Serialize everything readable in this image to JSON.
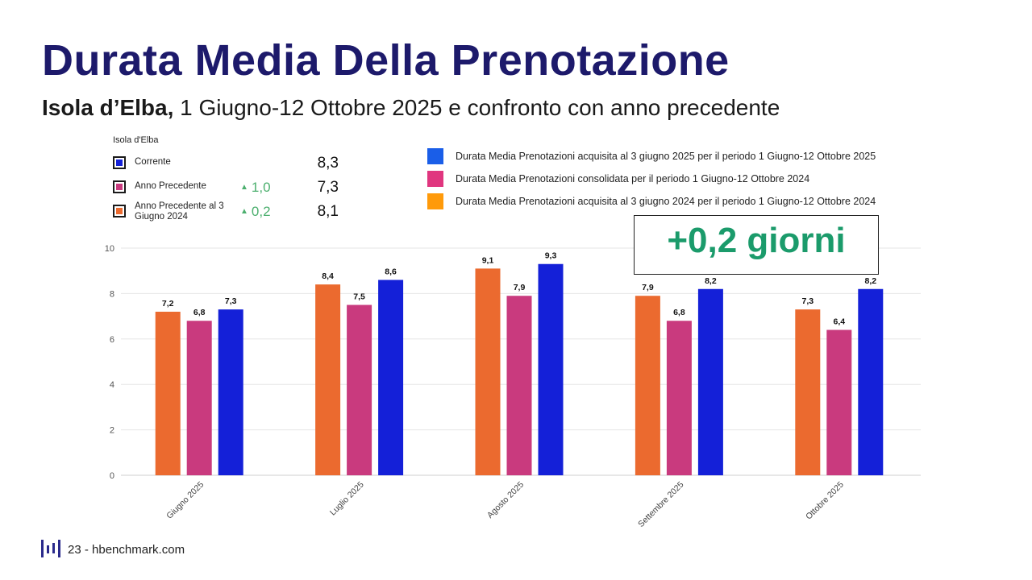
{
  "title": "Durata Media Della Prenotazione",
  "subtitle": {
    "bold": "Isola d’Elba,",
    "rest": "1 Giugno-12 Ottobre 2025 e confronto con anno precedente"
  },
  "kpi": {
    "header": "Isola d'Elba",
    "rows": [
      {
        "label": "Corrente",
        "delta": "",
        "value": "8,3",
        "color": "#1420d8"
      },
      {
        "label": "Anno Precedente",
        "delta": "1,0",
        "value": "7,3",
        "color": "#c93a7e"
      },
      {
        "label": "Anno Precedente al 3 Giugno 2024",
        "delta": "0,2",
        "value": "8,1",
        "color": "#eb6a2f"
      }
    ],
    "delta_color": "#4caf6e"
  },
  "legend": [
    {
      "text": "Durata Media Prenotazioni acquisita al 3 giugno 2025 per il periodo 1 Giugno-12 Ottobre 2025",
      "color": "#1a5ee8"
    },
    {
      "text": "Durata Media Prenotazioni consolidata per il periodo 1 Giugno-12 Ottobre 2024",
      "color": "#e0367f"
    },
    {
      "text": "Durata Media Prenotazioni acquisita al 3 giugno 2024 per il periodo 1 Giugno-12 Ottobre 2024",
      "color": "#ff9a0a"
    }
  ],
  "callout": {
    "text": "+0,2 giorni",
    "color": "#1b9b6b"
  },
  "chart_data": {
    "type": "bar",
    "categories": [
      "Giugno 2025",
      "Luglio 2025",
      "Agosto 2025",
      "Settembre 2025",
      "Ottobre 2025"
    ],
    "series": [
      {
        "values": [
          7.2,
          8.4,
          9.1,
          7.9,
          7.3
        ],
        "labels": [
          "7,2",
          "8,4",
          "9,1",
          "7,9",
          "7,3"
        ],
        "color": "#eb6a2f"
      },
      {
        "values": [
          6.8,
          7.5,
          7.9,
          6.8,
          6.4
        ],
        "labels": [
          "6,8",
          "7,5",
          "7,9",
          "6,8",
          "6,4"
        ],
        "color": "#c93a7e"
      },
      {
        "values": [
          7.3,
          8.6,
          9.3,
          8.2,
          8.2
        ],
        "labels": [
          "7,3",
          "8,6",
          "9,3",
          "8,2",
          "8,2"
        ],
        "color": "#1420d8"
      }
    ],
    "yticks": [
      0,
      2,
      4,
      6,
      8,
      10
    ],
    "ylim": [
      0,
      10
    ],
    "grid": true
  },
  "footer": {
    "text": "23 - hbenchmark.com",
    "logo_color": "#2a2a8c"
  }
}
